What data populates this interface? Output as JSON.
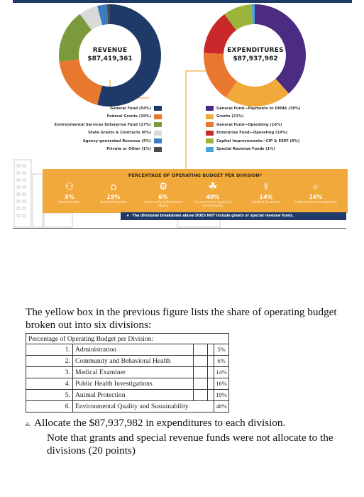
{
  "revenue": {
    "title": "REVENUE",
    "amount": "$87,419,361",
    "legend": [
      {
        "label": "General Fund (54%)",
        "color": "#1f3a68",
        "pct": 54
      },
      {
        "label": "Federal Grants (19%)",
        "color": "#e8782e",
        "pct": 19
      },
      {
        "label": "Environmental Services Enterprise Fund (17%)",
        "color": "#7b9a3c",
        "pct": 17
      },
      {
        "label": "State Grants & Contracts (6%)",
        "color": "#d9d9d9",
        "pct": 6
      },
      {
        "label": "Agency-generated Revenue (3%)",
        "color": "#3a7cc2",
        "pct": 3
      },
      {
        "label": "Private or Other (1%)",
        "color": "#4a4a4a",
        "pct": 1
      }
    ]
  },
  "expenditures": {
    "title": "EXPENDITURES",
    "amount": "$87,937,982",
    "legend": [
      {
        "label": "General Fund—Payments to DHHA (38%)",
        "color": "#4b2c82",
        "pct": 38
      },
      {
        "label": "Grants (21%)",
        "color": "#f2a93b",
        "pct": 21
      },
      {
        "label": "General Fund—Operating (16%)",
        "color": "#e8782e",
        "pct": 16
      },
      {
        "label": "Enterprise Fund—Operating (14%)",
        "color": "#c8282a",
        "pct": 14
      },
      {
        "label": "Capital Improvements—CIP & ESEF (9%)",
        "color": "#9bb53a",
        "pct": 9
      },
      {
        "label": "Special Revenue Funds (1%)",
        "color": "#4aa3d8",
        "pct": 1
      }
    ]
  },
  "budget_box": {
    "title": "PERCENTAGE OF OPERATING BUDGET PER DIVISION",
    "title_mark": "*",
    "divisions": [
      {
        "pct": "5%",
        "name": "Administration",
        "icon": "people-network-icon",
        "glyph": "⚇"
      },
      {
        "pct": "19%",
        "name": "Animal Protection",
        "icon": "pet-house-icon",
        "glyph": "⌂"
      },
      {
        "pct": "6%",
        "name": "Community & Behavioral Health",
        "icon": "head-gears-icon",
        "glyph": "⚙"
      },
      {
        "pct": "40%",
        "name": "Environmental Quality & Sustainability",
        "icon": "building-leaf-icon",
        "glyph": "☘"
      },
      {
        "pct": "14%",
        "name": "Medical Examiner",
        "icon": "microscope-icon",
        "glyph": "⚕"
      },
      {
        "pct": "16%",
        "name": "Public Health Investigations",
        "icon": "magnifier-icon",
        "glyph": "⌕"
      }
    ],
    "footnote": "The divisional breakdown above DOES NOT include grants or special revenue funds.",
    "footnote_mark": "★"
  },
  "intro_text": "The yellow box in the previous figure lists the share of operating budget broken out into six divisions:",
  "table": {
    "header": "Percentage of Operating Budget per Division:",
    "rows": [
      {
        "num": "1.",
        "name": "Administration",
        "pct": "5%"
      },
      {
        "num": "2.",
        "name": "Community and Behavioral Health",
        "pct": "6%"
      },
      {
        "num": "3.",
        "name": "Medical Examiner",
        "pct": "14%"
      },
      {
        "num": "4.",
        "name": "Public Health Investigations",
        "pct": "16%"
      },
      {
        "num": "5.",
        "name": "Animal Protection",
        "pct": "19%"
      },
      {
        "num": "6.",
        "name": "Environmental Quality and Sustainability",
        "pct": "40%"
      }
    ]
  },
  "question": {
    "marker": "a.",
    "first_line": "Allocate the $87,937,982 in expenditures to each division.",
    "rest": "Note that grants and special revenue funds were not allocate to the divisions (20 points)"
  }
}
